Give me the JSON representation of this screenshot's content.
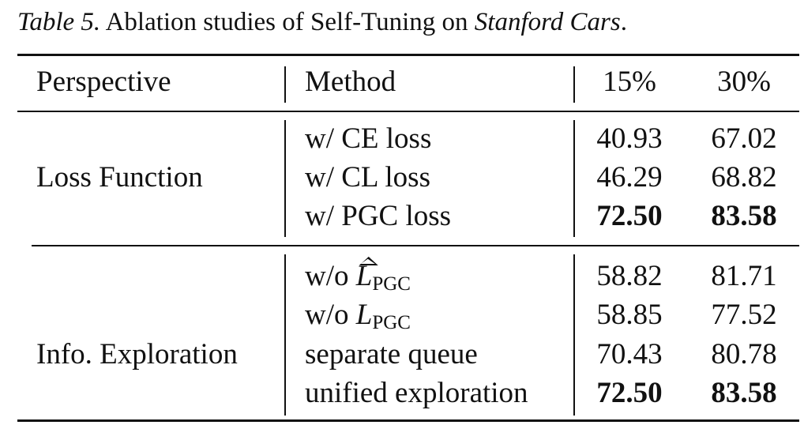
{
  "caption": {
    "label": "Table 5.",
    "text": " Ablation studies of Self-Tuning on ",
    "dataset": "Stanford Cars",
    "period": "."
  },
  "headers": {
    "perspective": "Perspective",
    "method": "Method",
    "col1": "15%",
    "col2": "30%"
  },
  "groups": [
    {
      "perspective": "Loss Function",
      "rows": [
        {
          "method": "w/ CE loss",
          "v15": "40.93",
          "v30": "67.02"
        },
        {
          "method": "w/ CL loss",
          "v15": "46.29",
          "v30": "68.82"
        },
        {
          "method": "w/ PGC loss",
          "v15": "72.50",
          "v30": "83.58"
        }
      ]
    },
    {
      "perspective": "Info. Exploration",
      "rows": [
        {
          "method_prefix": "w/o ",
          "symbol": "L",
          "subscript": "PGC",
          "v15": "58.82",
          "v30": "81.71"
        },
        {
          "method_prefix": "w/o ",
          "symbol": "L",
          "subscript": "PGC",
          "v15": "58.85",
          "v30": "77.52"
        },
        {
          "method": "separate queue",
          "v15": "70.43",
          "v30": "80.78"
        },
        {
          "method": "unified exploration",
          "v15": "72.50",
          "v30": "83.58"
        }
      ]
    }
  ]
}
